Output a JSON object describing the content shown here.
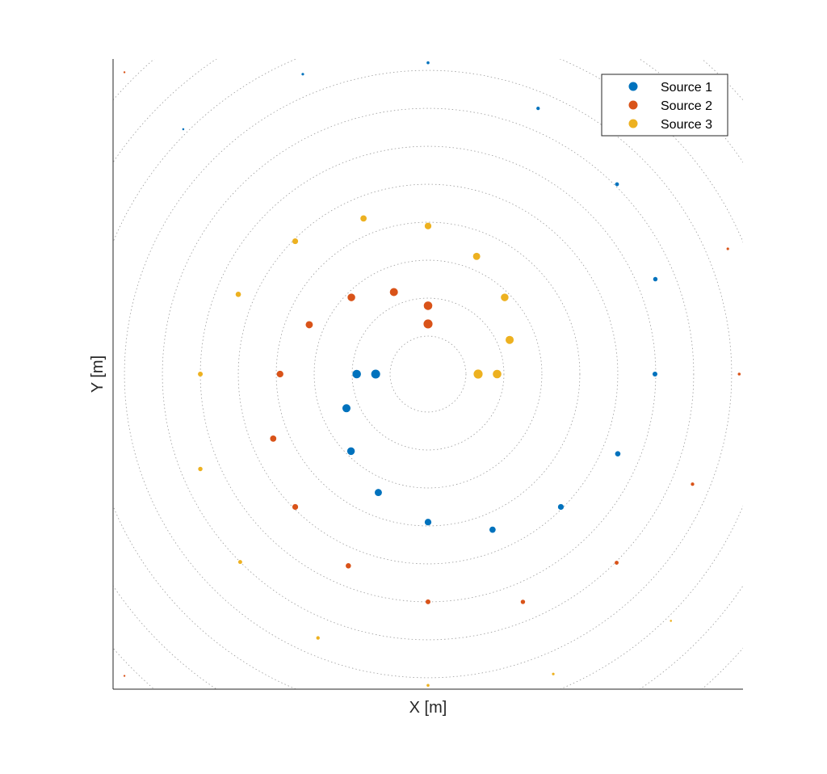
{
  "chart_data": {
    "type": "scatter",
    "title": "",
    "xlabel": "X [m]",
    "ylabel": "Y [m]",
    "xlim": [
      -8.3,
      8.3
    ],
    "ylim": [
      -8.3,
      8.3
    ],
    "grid": "concentric dotted circles",
    "ring_radii": [
      1,
      2,
      3,
      4,
      5,
      6,
      7,
      8,
      9,
      10,
      11
    ],
    "legend_placement": "top-right",
    "series": [
      {
        "name": "Source 1",
        "color": "#0072BD",
        "points": [
          [
            -1.38,
            0.0
          ],
          [
            -1.88,
            0.0
          ],
          [
            -2.15,
            -0.9
          ],
          [
            -2.03,
            -2.03
          ],
          [
            -1.31,
            -3.12
          ],
          [
            0.0,
            -3.9
          ],
          [
            1.7,
            -4.1
          ],
          [
            3.5,
            -3.5
          ],
          [
            5.0,
            -2.1
          ],
          [
            5.98,
            0.0
          ],
          [
            5.99,
            2.5
          ],
          [
            4.98,
            5.0
          ],
          [
            2.9,
            7.0
          ],
          [
            0.0,
            8.2
          ],
          [
            -3.3,
            7.9
          ],
          [
            -6.45,
            6.45
          ]
        ]
      },
      {
        "name": "Source 2",
        "color": "#D95319",
        "points": [
          [
            0.0,
            1.32
          ],
          [
            0.0,
            1.8
          ],
          [
            -0.9,
            2.16
          ],
          [
            -2.02,
            2.02
          ],
          [
            -3.13,
            1.3
          ],
          [
            -3.9,
            0.0
          ],
          [
            -4.08,
            -1.7
          ],
          [
            -3.5,
            -3.5
          ],
          [
            -2.1,
            -5.05
          ],
          [
            0.0,
            -6.0
          ],
          [
            2.5,
            -6.0
          ],
          [
            4.97,
            -4.97
          ],
          [
            6.97,
            -2.9
          ],
          [
            8.2,
            0.0
          ],
          [
            7.9,
            3.3
          ],
          [
            -8.0,
            7.95
          ],
          [
            -8.0,
            -7.95
          ]
        ]
      },
      {
        "name": "Source 3",
        "color": "#EDB120",
        "points": [
          [
            1.32,
            0.0
          ],
          [
            1.82,
            0.0
          ],
          [
            2.15,
            0.9
          ],
          [
            2.02,
            2.02
          ],
          [
            1.28,
            3.1
          ],
          [
            0.0,
            3.9
          ],
          [
            -1.7,
            4.1
          ],
          [
            -3.5,
            3.5
          ],
          [
            -5.0,
            2.1
          ],
          [
            -6.0,
            0.0
          ],
          [
            -6.0,
            -2.5
          ],
          [
            -4.95,
            -4.95
          ],
          [
            -2.9,
            -6.95
          ],
          [
            0.0,
            -8.2
          ],
          [
            3.3,
            -7.9
          ],
          [
            6.4,
            -6.5
          ]
        ]
      }
    ]
  }
}
